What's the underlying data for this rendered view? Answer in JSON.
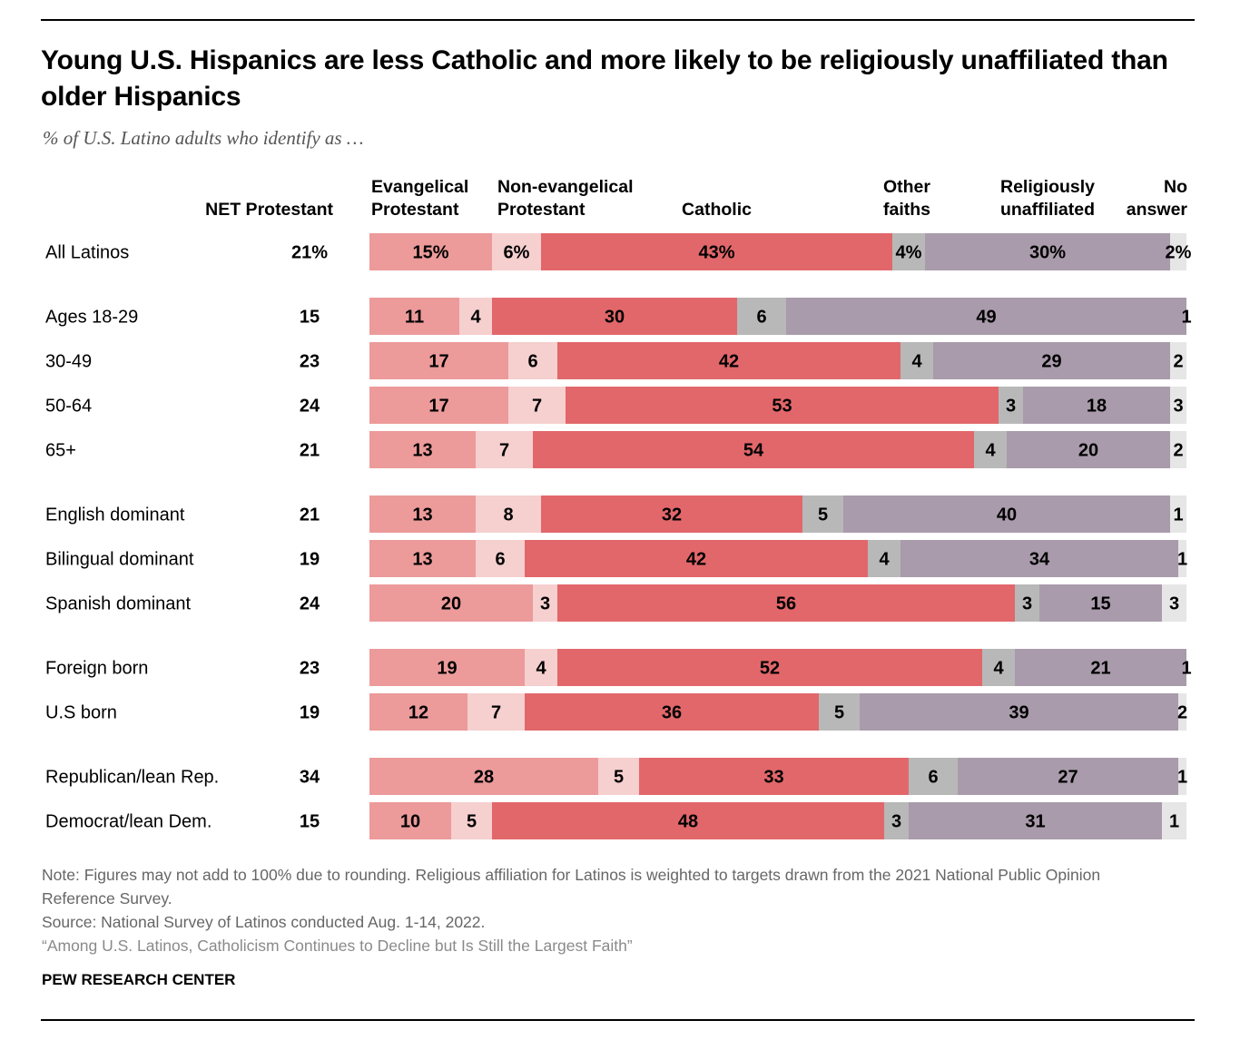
{
  "title": "Young U.S. Hispanics are less Catholic and more likely to be religiously unaffiliated than older Hispanics",
  "subtitle": "% of U.S. Latino adults who identify as …",
  "net_header": "NET Protestant",
  "chart_data": {
    "type": "bar",
    "orientation": "horizontal",
    "stacked": true,
    "xlim": [
      0,
      100
    ],
    "legend": "column headers above bars",
    "series": [
      {
        "name": "Evangelical Protestant",
        "label_lines": [
          "Evangelical",
          "Protestant"
        ],
        "color": "#ec9a9a",
        "values": [
          15,
          11,
          17,
          17,
          13,
          13,
          13,
          20,
          19,
          12,
          28,
          10
        ]
      },
      {
        "name": "Non-evangelical Protestant",
        "label_lines": [
          "Non-evangelical",
          "Protestant"
        ],
        "color": "#f6cfcf",
        "values": [
          6,
          4,
          6,
          7,
          7,
          8,
          6,
          3,
          4,
          7,
          5,
          5
        ]
      },
      {
        "name": "Catholic",
        "label_lines": [
          "Catholic"
        ],
        "color": "#e2676a",
        "values": [
          43,
          30,
          42,
          53,
          54,
          32,
          42,
          56,
          52,
          36,
          33,
          48
        ]
      },
      {
        "name": "Other faiths",
        "label_lines": [
          "Other",
          "faiths"
        ],
        "color": "#b8b8b8",
        "values": [
          4,
          6,
          4,
          3,
          4,
          5,
          4,
          3,
          4,
          5,
          6,
          3
        ]
      },
      {
        "name": "Religiously unaffiliated",
        "label_lines": [
          "Religiously",
          "unaffiliated"
        ],
        "color": "#a99bab",
        "values": [
          30,
          49,
          29,
          18,
          20,
          40,
          34,
          15,
          21,
          39,
          27,
          31
        ]
      },
      {
        "name": "No answer",
        "label_lines": [
          "No",
          "answer"
        ],
        "color": "#e6e6e6",
        "values": [
          2,
          1,
          2,
          3,
          2,
          1,
          1,
          3,
          1,
          2,
          1,
          1
        ]
      }
    ],
    "categories": [
      "All Latinos",
      "Ages 18-29",
      "30-49",
      "50-64",
      "65+",
      "English dominant",
      "Bilingual dominant",
      "Spanish dominant",
      "Foreign born",
      "U.S born",
      "Republican/lean Rep.",
      "Democrat/lean Dem."
    ],
    "groups": [
      [
        0
      ],
      [
        1,
        2,
        3,
        4
      ],
      [
        5,
        6,
        7
      ],
      [
        8,
        9
      ],
      [
        10,
        11
      ]
    ],
    "net_protestant": [
      "21%",
      "15",
      "23",
      "24",
      "21",
      "21",
      "19",
      "24",
      "23",
      "19",
      "34",
      "15"
    ],
    "value_labels_first_row_suffix": "%"
  },
  "note": "Note: Figures may not add to 100% due to rounding. Religious affiliation for Latinos is weighted to targets drawn from the 2021 National Public Opinion Reference Survey.",
  "source": "Source: National Survey of Latinos conducted Aug. 1-14, 2022.",
  "report": "“Among U.S. Latinos, Catholicism Continues to Decline but Is Still the Largest Faith”",
  "brand": "PEW RESEARCH CENTER"
}
